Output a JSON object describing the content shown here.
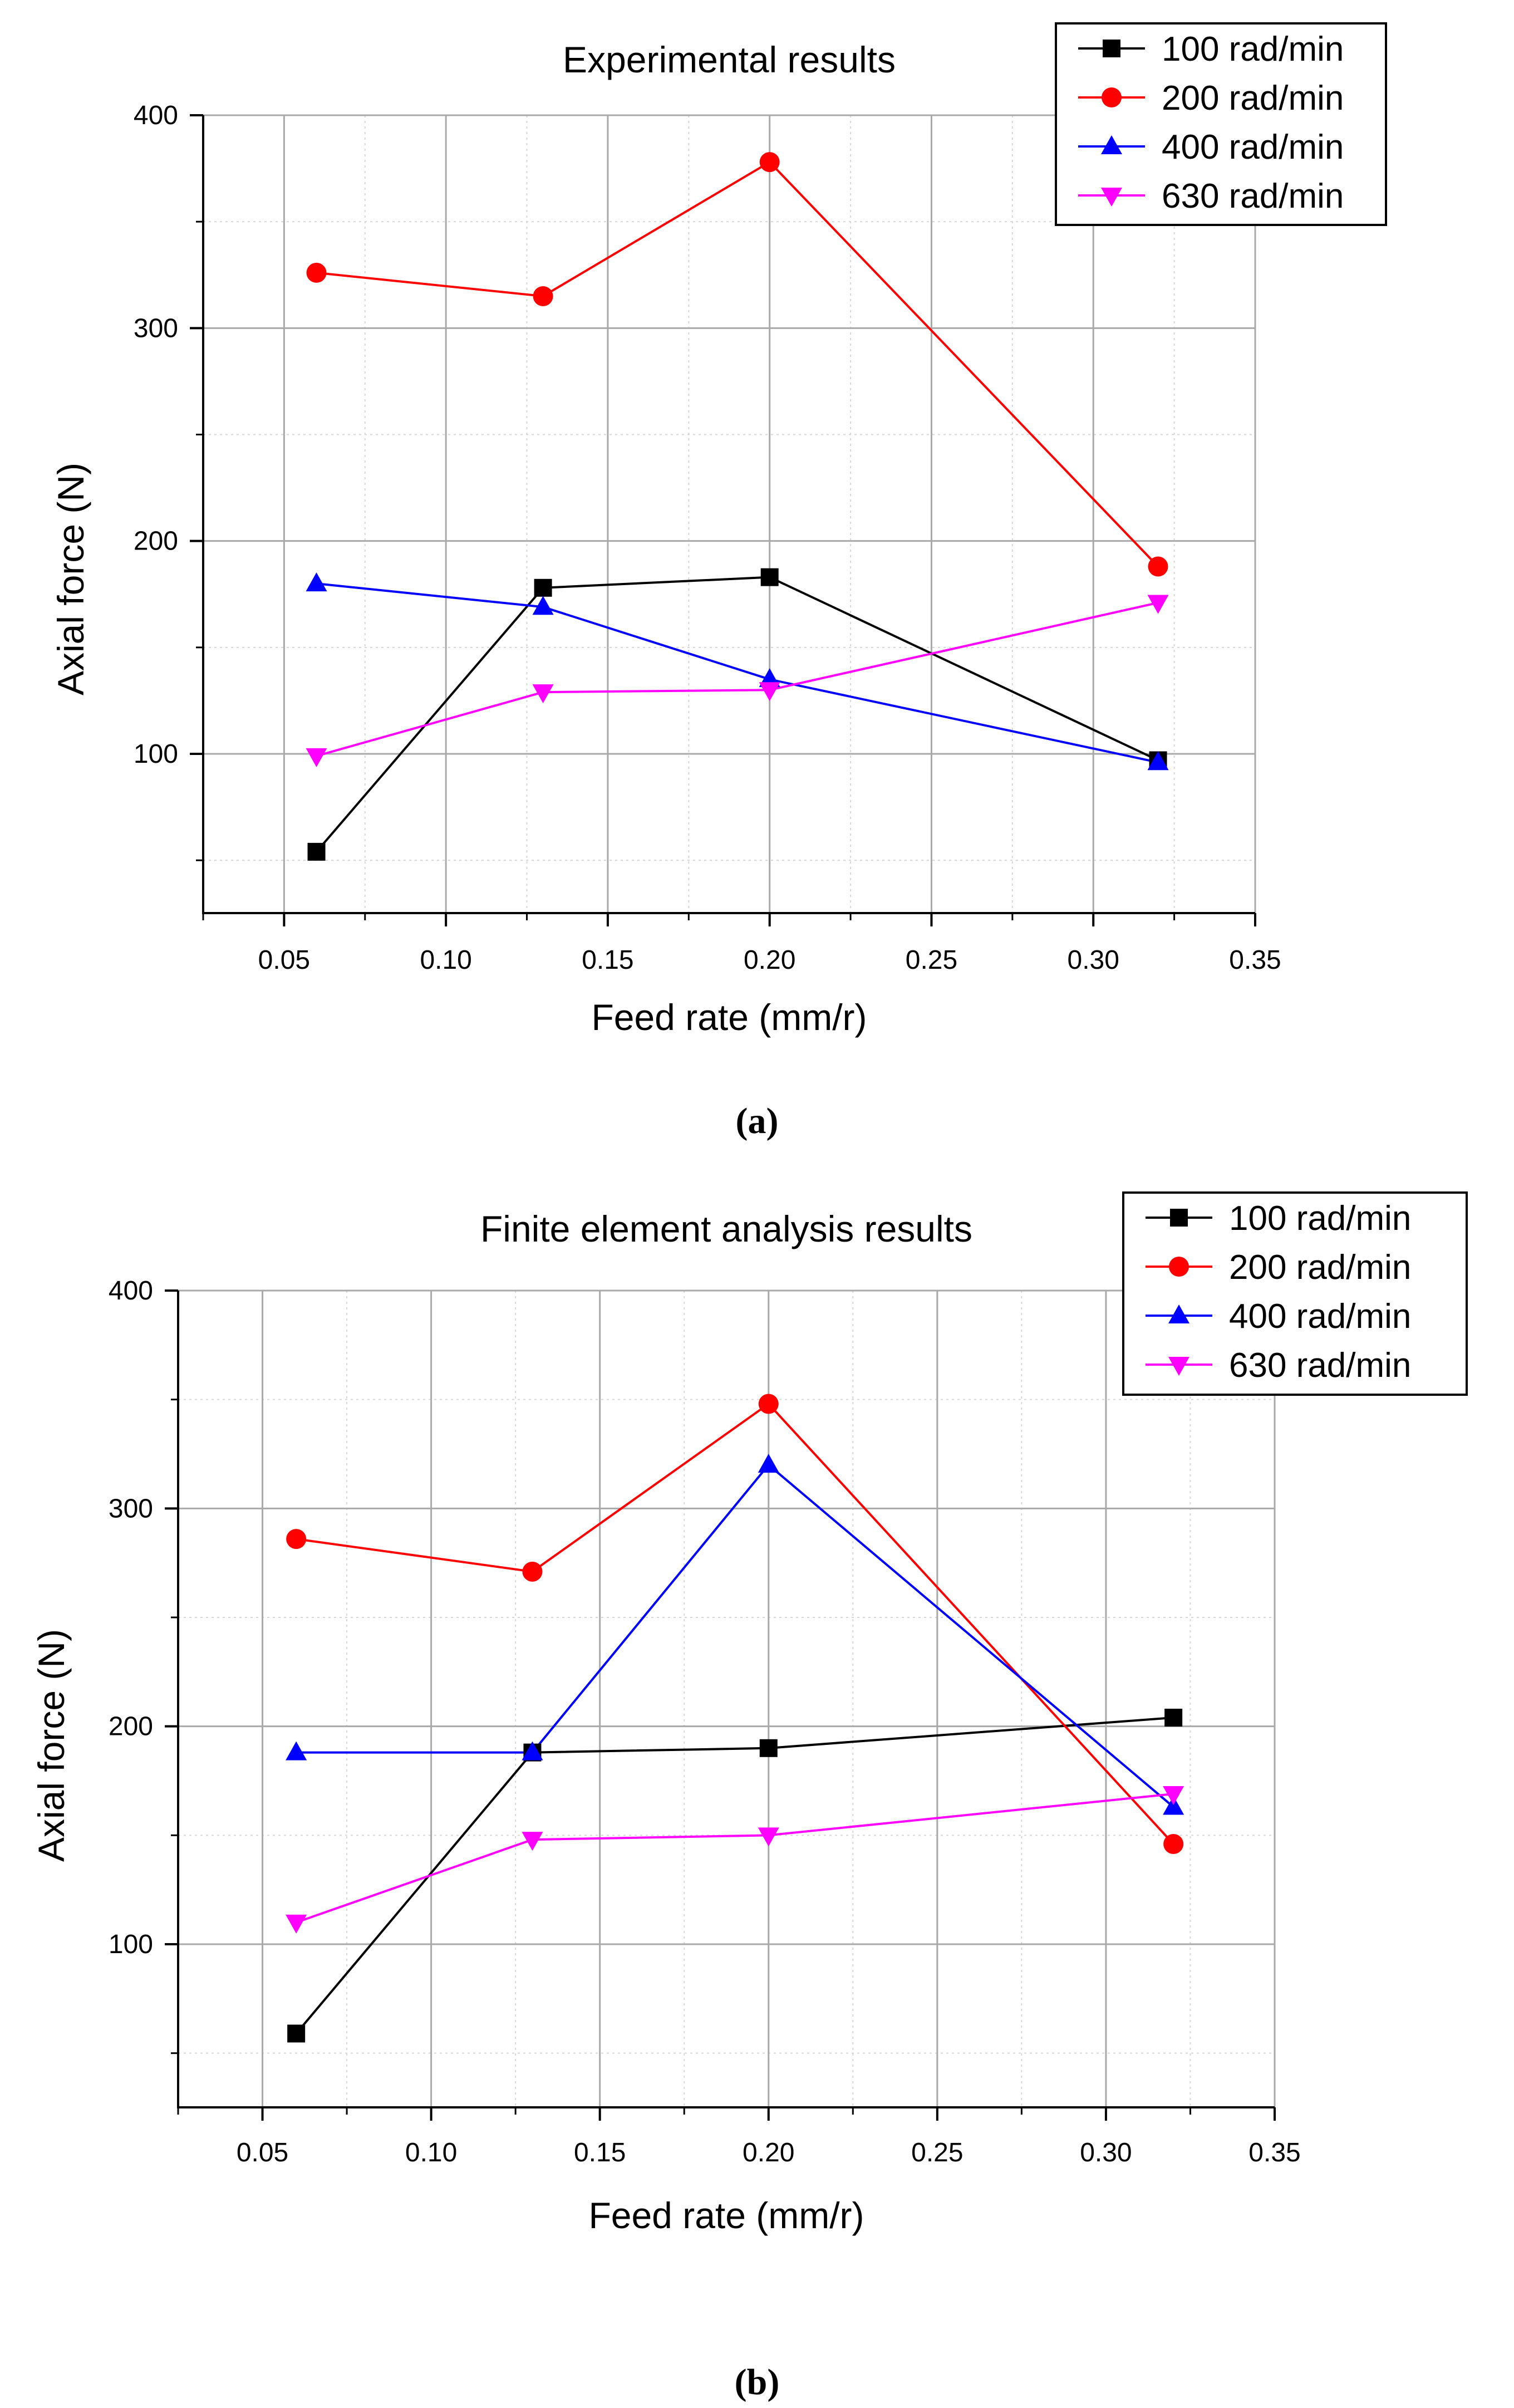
{
  "figure": {
    "captions": [
      "(a)",
      "(b)"
    ]
  },
  "colors": {
    "100 rad/min": "#000000",
    "200 rad/min": "#ff0000",
    "400 rad/min": "#0000ff",
    "630 rad/min": "#ff00ff",
    "grid_major": "#a9a9a9",
    "grid_minor": "#d6d6d6"
  },
  "chart_data": [
    {
      "type": "line",
      "title": "Experimental results",
      "xlabel": "Feed rate (mm/r)",
      "ylabel": "Axial force (N)",
      "xlim": [
        0.025,
        0.35
      ],
      "ylim": [
        25,
        400
      ],
      "x_ticks": [
        0.05,
        0.1,
        0.15,
        0.2,
        0.25,
        0.3,
        0.35
      ],
      "x_tick_labels": [
        "0.05",
        "0.10",
        "0.15",
        "0.20",
        "0.25",
        "0.30",
        "0.35"
      ],
      "y_ticks": [
        100,
        200,
        300,
        400
      ],
      "y_tick_labels": [
        "100",
        "200",
        "300",
        "400"
      ],
      "grid": true,
      "legend_position": "top-right",
      "x": [
        0.06,
        0.13,
        0.2,
        0.32
      ],
      "series": [
        {
          "name": "100 rad/min",
          "marker": "square",
          "values": [
            54,
            178,
            183,
            97
          ]
        },
        {
          "name": "200 rad/min",
          "marker": "circle",
          "values": [
            326,
            315,
            378,
            188
          ]
        },
        {
          "name": "400 rad/min",
          "marker": "triangle-up",
          "values": [
            180,
            169,
            135,
            96
          ]
        },
        {
          "name": "630 rad/min",
          "marker": "triangle-down",
          "values": [
            99,
            129,
            130,
            171
          ]
        }
      ]
    },
    {
      "type": "line",
      "title": "Finite element analysis results",
      "xlabel": "Feed rate (mm/r)",
      "ylabel": "Axial force (N)",
      "xlim": [
        0.025,
        0.35
      ],
      "ylim": [
        25,
        400
      ],
      "x_ticks": [
        0.05,
        0.1,
        0.15,
        0.2,
        0.25,
        0.3,
        0.35
      ],
      "x_tick_labels": [
        "0.05",
        "0.10",
        "0.15",
        "0.20",
        "0.25",
        "0.30",
        "0.35"
      ],
      "y_ticks": [
        100,
        200,
        300,
        400
      ],
      "y_tick_labels": [
        "100",
        "200",
        "300",
        "400"
      ],
      "grid": true,
      "legend_position": "top-right",
      "x": [
        0.06,
        0.13,
        0.2,
        0.32
      ],
      "series": [
        {
          "name": "100 rad/min",
          "marker": "square",
          "values": [
            59,
            188,
            190,
            204
          ]
        },
        {
          "name": "200 rad/min",
          "marker": "circle",
          "values": [
            286,
            271,
            348,
            146
          ]
        },
        {
          "name": "400 rad/min",
          "marker": "triangle-up",
          "values": [
            188,
            188,
            320,
            163
          ]
        },
        {
          "name": "630 rad/min",
          "marker": "triangle-down",
          "values": [
            110,
            148,
            150,
            169
          ]
        }
      ]
    }
  ]
}
